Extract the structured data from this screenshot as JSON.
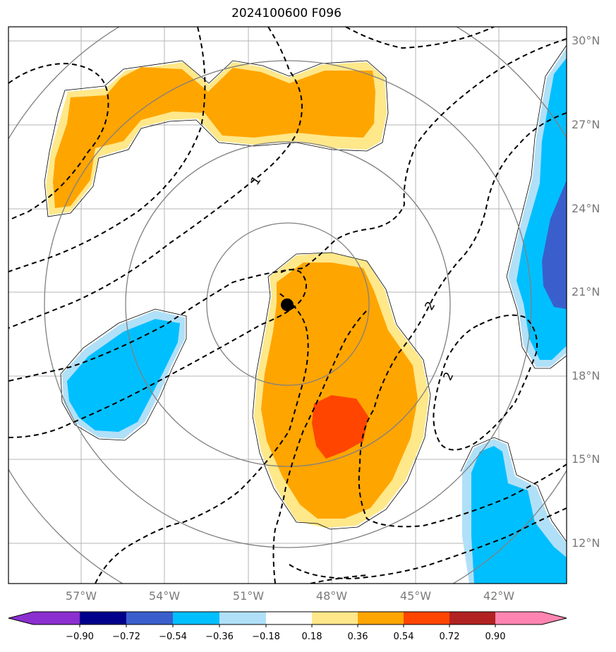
{
  "title": "2024100600 F096",
  "latitude_labels": [
    "30°N",
    "27°N",
    "24°N",
    "21°N",
    "18°N",
    "15°N",
    "12°N"
  ],
  "longitude_labels": [
    "57°W",
    "54°W",
    "51°W",
    "48°W",
    "45°W",
    "42°W"
  ],
  "contour_labels": [
    "1",
    "2",
    "2"
  ],
  "storm_center": {
    "lat": 20.6,
    "lon": "-49.3"
  },
  "colorbar": {
    "tick_labels": [
      "−0.90",
      "−0.72",
      "−0.54",
      "−0.36",
      "−0.18",
      "0.18",
      "0.36",
      "0.54",
      "0.72",
      "0.90"
    ],
    "colors": [
      "#8b2fd0",
      "#00008b",
      "#3a5fcd",
      "#00bfff",
      "#b0e0f8",
      "#ffffff",
      "#ffe88a",
      "#ffa500",
      "#ff4500",
      "#b22222",
      "#ff85b0"
    ]
  },
  "palette": {
    "light_blue": "#b0e0f8",
    "blue": "#00bfff",
    "dark_blue": "#3a5fcd",
    "light_yellow": "#ffe88a",
    "orange": "#ffa500",
    "red": "#ff4500"
  }
}
